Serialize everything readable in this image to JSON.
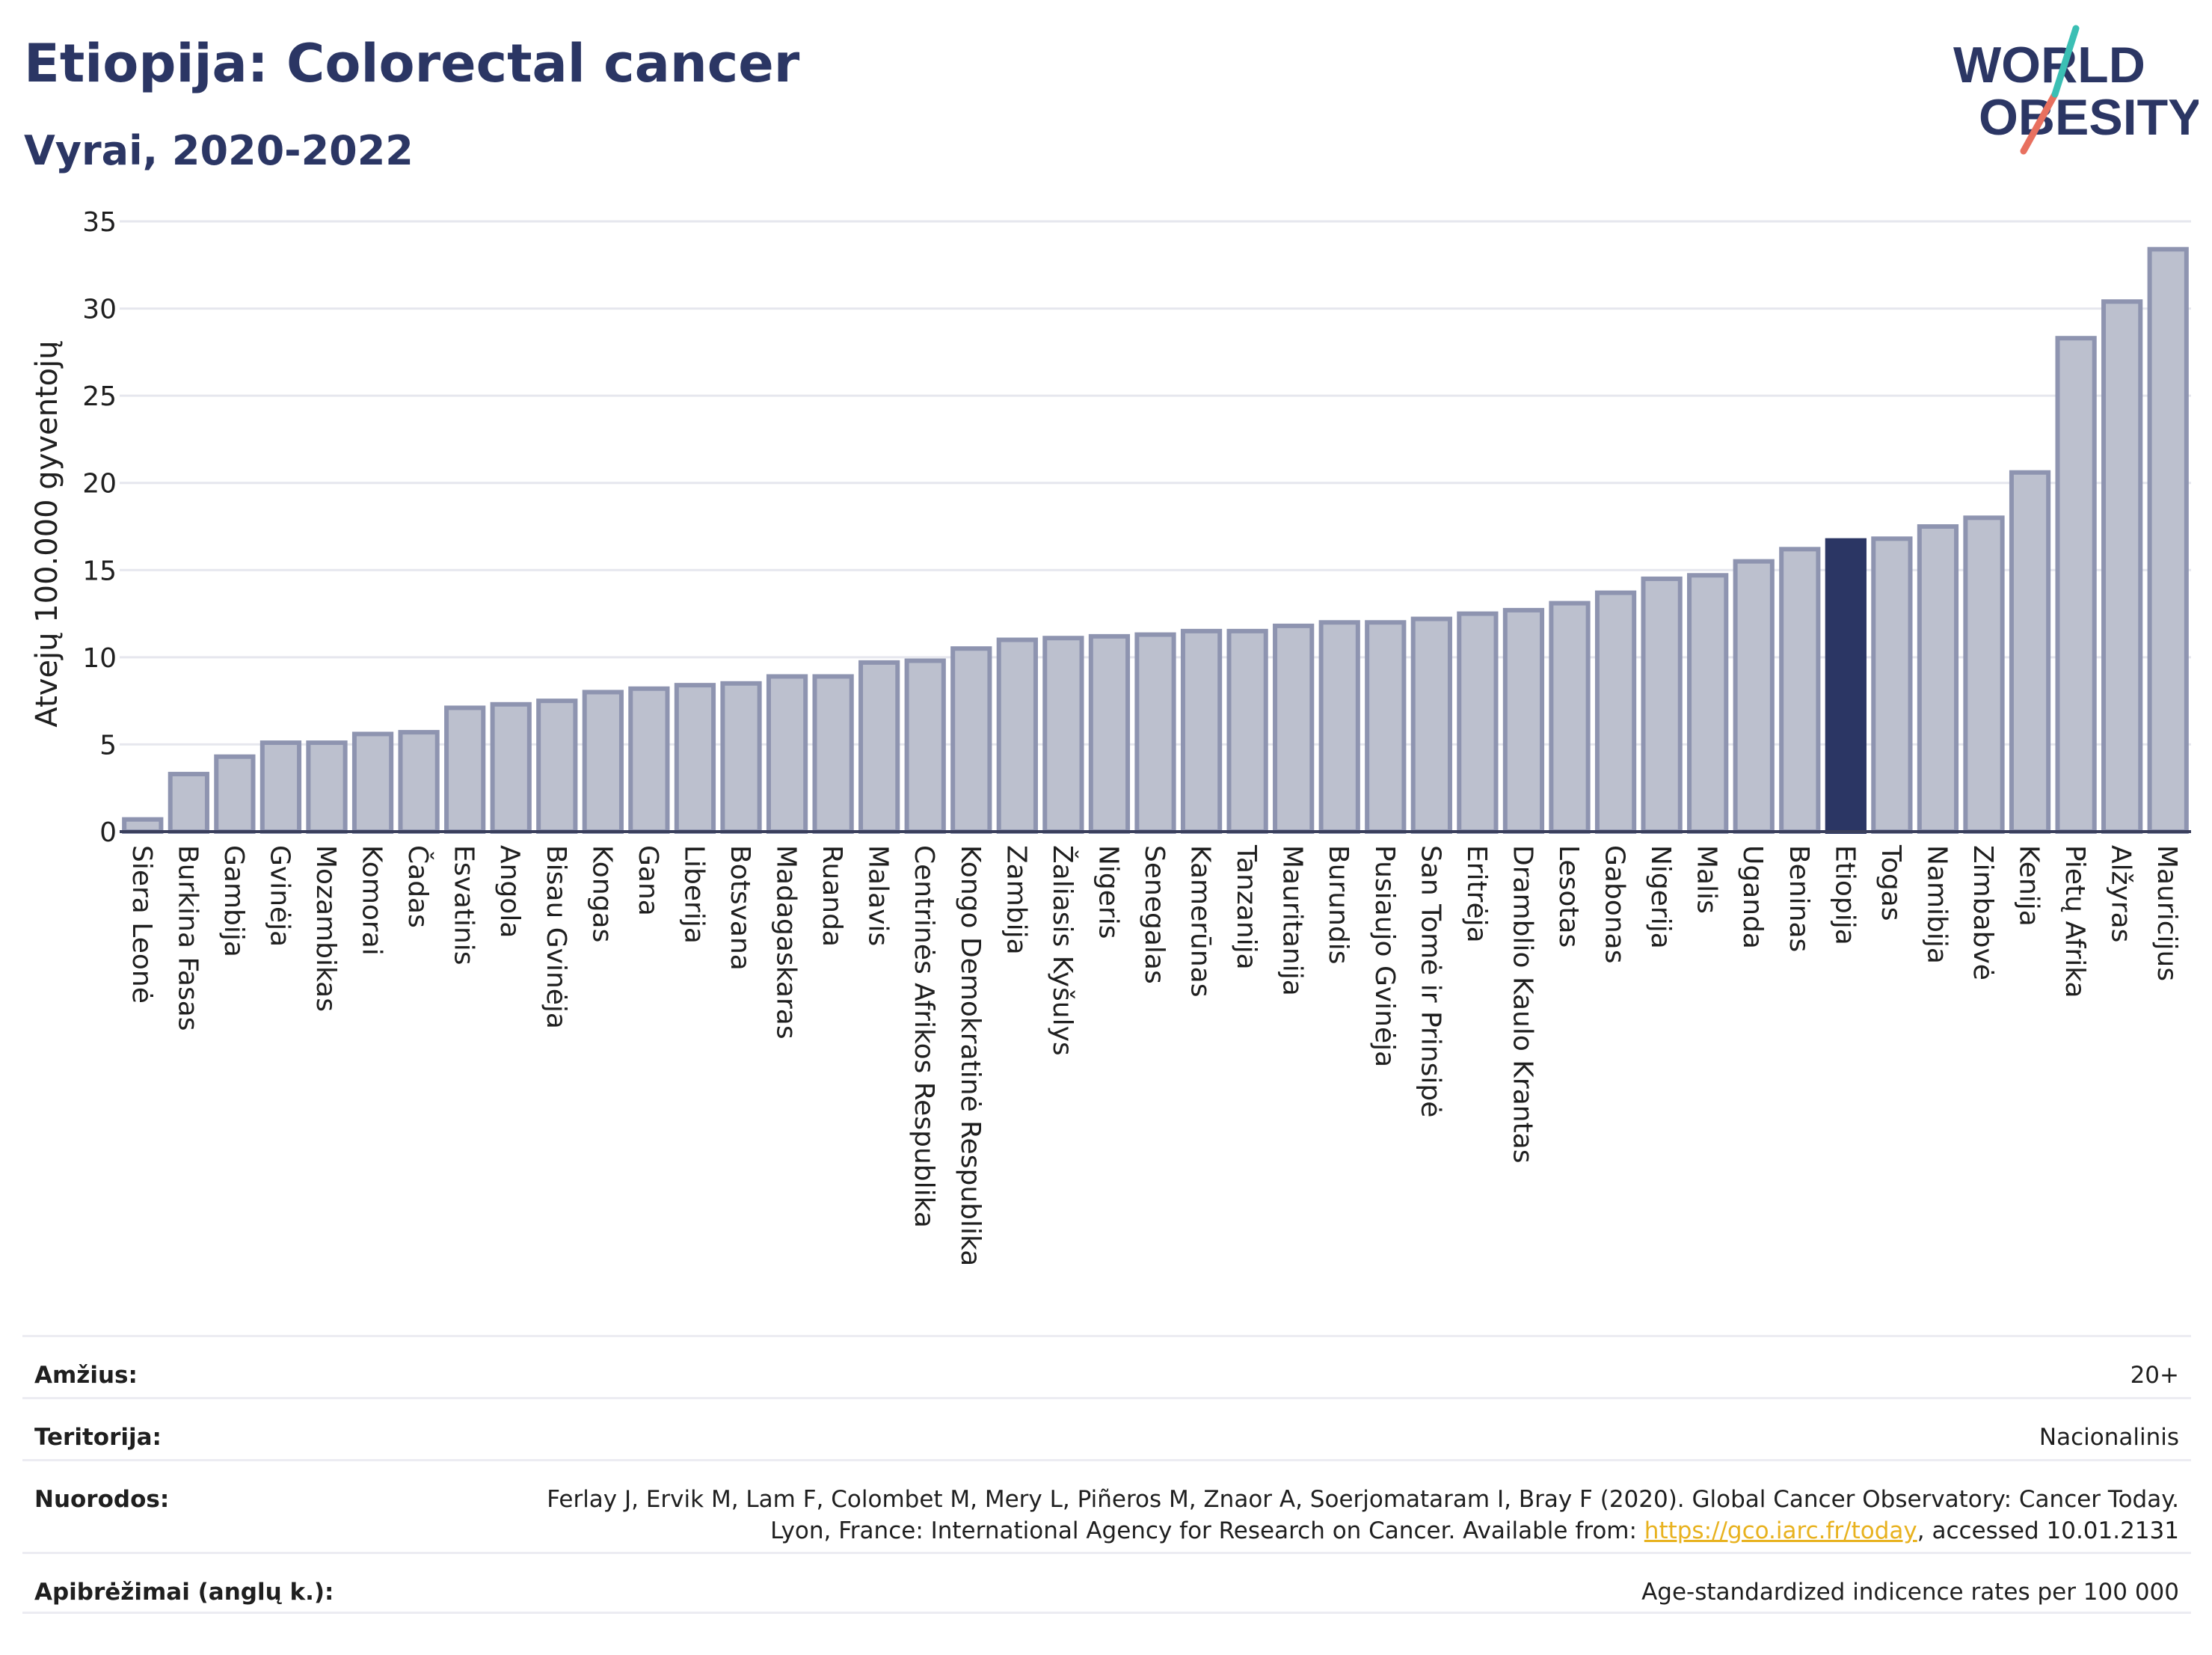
{
  "title": "Etiopija: Colorectal cancer",
  "subtitle": "Vyrai, 2020-2022",
  "logo": {
    "line1": "WORLD",
    "line2": "OBESITY"
  },
  "colors": {
    "bar": "#bcc0ce",
    "bar_stroke": "#8e94b0",
    "highlight": "#2b3664",
    "title": "#2b3664",
    "grid": "#e6e7ee"
  },
  "chart_data": {
    "type": "bar",
    "ylabel": "Atvejų 100.000 gyventojų",
    "ylim": [
      0,
      35
    ],
    "yticks": [
      0,
      5,
      10,
      15,
      20,
      25,
      30,
      35
    ],
    "highlight": "Etiopija",
    "categories": [
      "Siera Leonė",
      "Burkina Fasas",
      "Gambija",
      "Gvinėja",
      "Mozambikas",
      "Komorai",
      "Čadas",
      "Esvatinis",
      "Angola",
      "Bisau Gvinėja",
      "Kongas",
      "Gana",
      "Liberija",
      "Botsvana",
      "Madagaskaras",
      "Ruanda",
      "Malavis",
      "Centrinės Afrikos Respublika",
      "Kongo Demokratinė Respublika",
      "Zambija",
      "Žaliasis Kyšulys",
      "Nigeris",
      "Senegalas",
      "Kamerūnas",
      "Tanzanija",
      "Mauritanija",
      "Burundis",
      "Pusiaujo Gvinėja",
      "San Tomė ir Prinsipė",
      "Eritrėja",
      "Dramblio Kaulo Krantas",
      "Lesotas",
      "Gabonas",
      "Nigerija",
      "Malis",
      "Uganda",
      "Beninas",
      "Etiopija",
      "Togas",
      "Namibija",
      "Zimbabvė",
      "Kenija",
      "Pietų Afrika",
      "Alžyras",
      "Mauricijus"
    ],
    "values": [
      0.7,
      3.3,
      4.3,
      5.1,
      5.1,
      5.6,
      5.7,
      7.1,
      7.3,
      7.5,
      8.0,
      8.2,
      8.4,
      8.5,
      8.9,
      8.9,
      9.7,
      9.8,
      10.5,
      11.0,
      11.1,
      11.2,
      11.3,
      11.5,
      11.5,
      11.8,
      12.0,
      12.0,
      12.2,
      12.5,
      12.7,
      13.1,
      13.7,
      14.5,
      14.7,
      15.5,
      16.2,
      16.7,
      16.8,
      17.5,
      18.0,
      20.6,
      28.3,
      30.4,
      33.4
    ]
  },
  "meta": [
    {
      "key": "Amžius:",
      "value": "20+"
    },
    {
      "key": "Teritorija:",
      "value": "Nacionalinis"
    },
    {
      "key": "Nuorodos:",
      "value_pre": "Ferlay J, Ervik M, Lam F, Colombet M, Mery L, Piñeros M, Znaor A, Soerjomataram I, Bray F (2020). Global Cancer Observatory: Cancer Today. Lyon, France: International Agency for Research on Cancer. Available from: ",
      "link": "https://gco.iarc.fr/today",
      "value_post": ", accessed 10.01.2131"
    },
    {
      "key": "Apibrėžimai (anglų k.):",
      "value": "Age-standardized indicence rates per 100 000"
    }
  ]
}
